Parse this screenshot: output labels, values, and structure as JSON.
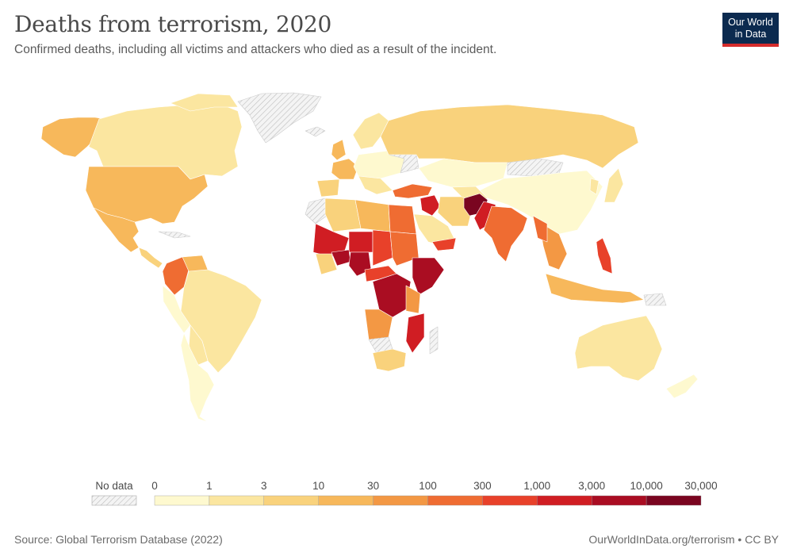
{
  "header": {
    "title": "Deaths from terrorism, 2020",
    "subtitle": "Confirmed deaths, including all victims and attackers who died as a result of the incident."
  },
  "logo": {
    "line1": "Our World",
    "line2": "in Data",
    "bg": "#0b2a4f",
    "accent": "#d42b2b"
  },
  "legend": {
    "no_data_label": "No data",
    "bins": [
      "0",
      "1",
      "3",
      "10",
      "30",
      "100",
      "300",
      "1,000",
      "3,000",
      "10,000",
      "30,000"
    ],
    "colors": [
      "#fef9cf",
      "#fbe6a0",
      "#f9d27c",
      "#f7b85b",
      "#f39844",
      "#ef6c32",
      "#e8412a",
      "#d01d23",
      "#aa0d22",
      "#7a0520"
    ]
  },
  "footer": {
    "source": "Source: Global Terrorism Database (2022)",
    "credit": "OurWorldInData.org/terrorism • CC BY"
  },
  "map_data": {
    "type": "choropleth",
    "scale": "log",
    "no_data_pattern": "hatched grey",
    "regions": [
      {
        "name": "Afghanistan",
        "bin": 9
      },
      {
        "name": "Pakistan",
        "bin": 7
      },
      {
        "name": "India",
        "bin": 6
      },
      {
        "name": "Iraq",
        "bin": 7
      },
      {
        "name": "Syria",
        "bin": 7
      },
      {
        "name": "Yemen",
        "bin": 7
      },
      {
        "name": "Nigeria",
        "bin": 8
      },
      {
        "name": "Somalia",
        "bin": 8
      },
      {
        "name": "Mali",
        "bin": 7
      },
      {
        "name": "Burkina Faso",
        "bin": 8
      },
      {
        "name": "Niger",
        "bin": 7
      },
      {
        "name": "Dem. Rep. Congo",
        "bin": 8
      },
      {
        "name": "Mozambique",
        "bin": 7
      },
      {
        "name": "Cameroon",
        "bin": 7
      },
      {
        "name": "Ethiopia",
        "bin": 7
      },
      {
        "name": "Philippines",
        "bin": 6
      },
      {
        "name": "Colombia",
        "bin": 6
      },
      {
        "name": "Turkey",
        "bin": 5
      },
      {
        "name": "Egypt",
        "bin": 5
      },
      {
        "name": "Libya",
        "bin": 4
      },
      {
        "name": "United States",
        "bin": 3
      },
      {
        "name": "Mexico",
        "bin": 3
      },
      {
        "name": "Russia",
        "bin": 1
      },
      {
        "name": "Canada",
        "bin": 1
      },
      {
        "name": "Australia",
        "bin": 1
      },
      {
        "name": "Brazil",
        "bin": 1
      },
      {
        "name": "China",
        "bin": 0
      },
      {
        "name": "Kazakhstan",
        "bin": 0
      },
      {
        "name": "Greenland",
        "bin": -1
      }
    ]
  }
}
